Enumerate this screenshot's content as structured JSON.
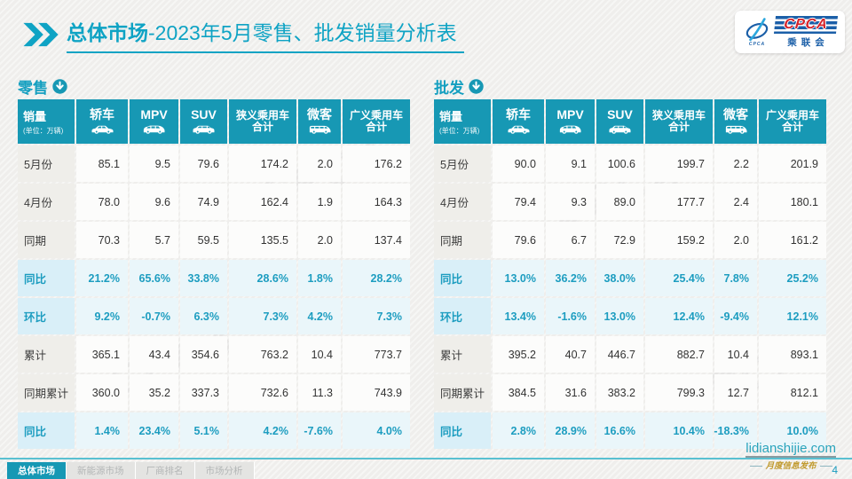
{
  "header": {
    "title_bold": "总体市场",
    "title_rest": "-2023年5月零售、批发销量分析表"
  },
  "logo": {
    "brand": "CPCA",
    "brand_sub": "乘联会",
    "swoosh_caption": "CPCA"
  },
  "watermark_text": "CPCA",
  "colors": {
    "teal_header": "#1798b4",
    "teal_text": "#149fc0",
    "percent_row_bg": "#d9eff8",
    "logo_blue": "#1b5fa8",
    "logo_red": "#d5232a"
  },
  "tables": [
    {
      "title": "零售",
      "corner": {
        "label": "销量",
        "unit": "(单位：万辆)"
      },
      "columns": [
        {
          "lines": [
            "轿车"
          ],
          "icon": "sedan-icon"
        },
        {
          "lines": [
            "MPV"
          ],
          "icon": "mpv-icon"
        },
        {
          "lines": [
            "SUV"
          ],
          "icon": "suv-icon"
        },
        {
          "lines": [
            "狭义乘用车",
            "合计"
          ],
          "icon": null
        },
        {
          "lines": [
            "微客"
          ],
          "icon": "microvan-icon"
        },
        {
          "lines": [
            "广义乘用车",
            "合计"
          ],
          "icon": null
        }
      ],
      "rows": [
        {
          "label": "5月份",
          "type": "normal",
          "values": [
            "85.1",
            "9.5",
            "79.6",
            "174.2",
            "2.0",
            "176.2"
          ]
        },
        {
          "label": "4月份",
          "type": "normal",
          "values": [
            "78.0",
            "9.6",
            "74.9",
            "162.4",
            "1.9",
            "164.3"
          ]
        },
        {
          "label": "同期",
          "type": "normal",
          "values": [
            "70.3",
            "5.7",
            "59.5",
            "135.5",
            "2.0",
            "137.4"
          ]
        },
        {
          "label": "同比",
          "type": "percent",
          "values": [
            "21.2%",
            "65.6%",
            "33.8%",
            "28.6%",
            "1.8%",
            "28.2%"
          ]
        },
        {
          "label": "环比",
          "type": "percent",
          "values": [
            "9.2%",
            "-0.7%",
            "6.3%",
            "7.3%",
            "4.2%",
            "7.3%"
          ]
        },
        {
          "label": "累计",
          "type": "normal",
          "values": [
            "365.1",
            "43.4",
            "354.6",
            "763.2",
            "10.4",
            "773.7"
          ]
        },
        {
          "label": "同期累计",
          "type": "normal",
          "values": [
            "360.0",
            "35.2",
            "337.3",
            "732.6",
            "11.3",
            "743.9"
          ]
        },
        {
          "label": "同比",
          "type": "percent",
          "values": [
            "1.4%",
            "23.4%",
            "5.1%",
            "4.2%",
            "-7.6%",
            "4.0%"
          ]
        }
      ]
    },
    {
      "title": "批发",
      "corner": {
        "label": "销量",
        "unit": "(单位：万辆)"
      },
      "columns": [
        {
          "lines": [
            "轿车"
          ],
          "icon": "sedan-icon"
        },
        {
          "lines": [
            "MPV"
          ],
          "icon": "mpv-icon"
        },
        {
          "lines": [
            "SUV"
          ],
          "icon": "suv-icon"
        },
        {
          "lines": [
            "狭义乘用车",
            "合计"
          ],
          "icon": null
        },
        {
          "lines": [
            "微客"
          ],
          "icon": "microvan-icon"
        },
        {
          "lines": [
            "广义乘用车",
            "合计"
          ],
          "icon": null
        }
      ],
      "rows": [
        {
          "label": "5月份",
          "type": "normal",
          "values": [
            "90.0",
            "9.1",
            "100.6",
            "199.7",
            "2.2",
            "201.9"
          ]
        },
        {
          "label": "4月份",
          "type": "normal",
          "values": [
            "79.4",
            "9.3",
            "89.0",
            "177.7",
            "2.4",
            "180.1"
          ]
        },
        {
          "label": "同期",
          "type": "normal",
          "values": [
            "79.6",
            "6.7",
            "72.9",
            "159.2",
            "2.0",
            "161.2"
          ]
        },
        {
          "label": "同比",
          "type": "percent",
          "values": [
            "13.0%",
            "36.2%",
            "38.0%",
            "25.4%",
            "7.8%",
            "25.2%"
          ]
        },
        {
          "label": "环比",
          "type": "percent",
          "values": [
            "13.4%",
            "-1.6%",
            "13.0%",
            "12.4%",
            "-9.4%",
            "12.1%"
          ]
        },
        {
          "label": "累计",
          "type": "normal",
          "values": [
            "395.2",
            "40.7",
            "446.7",
            "882.7",
            "10.4",
            "893.1"
          ]
        },
        {
          "label": "同期累计",
          "type": "normal",
          "values": [
            "384.5",
            "31.6",
            "383.2",
            "799.3",
            "12.7",
            "812.1"
          ]
        },
        {
          "label": "同比",
          "type": "percent",
          "values": [
            "2.8%",
            "28.9%",
            "16.6%",
            "10.4%",
            "-18.3%",
            "10.0%"
          ]
        }
      ]
    }
  ],
  "footer": {
    "tabs": [
      {
        "label": "总体市场",
        "active": true
      },
      {
        "label": "新能源市场",
        "active": false
      },
      {
        "label": "厂商排名",
        "active": false
      },
      {
        "label": "市场分析",
        "active": false
      }
    ],
    "site_url": "lidianshijie.com",
    "tagline": "月度信息发布",
    "page_number": "4"
  }
}
